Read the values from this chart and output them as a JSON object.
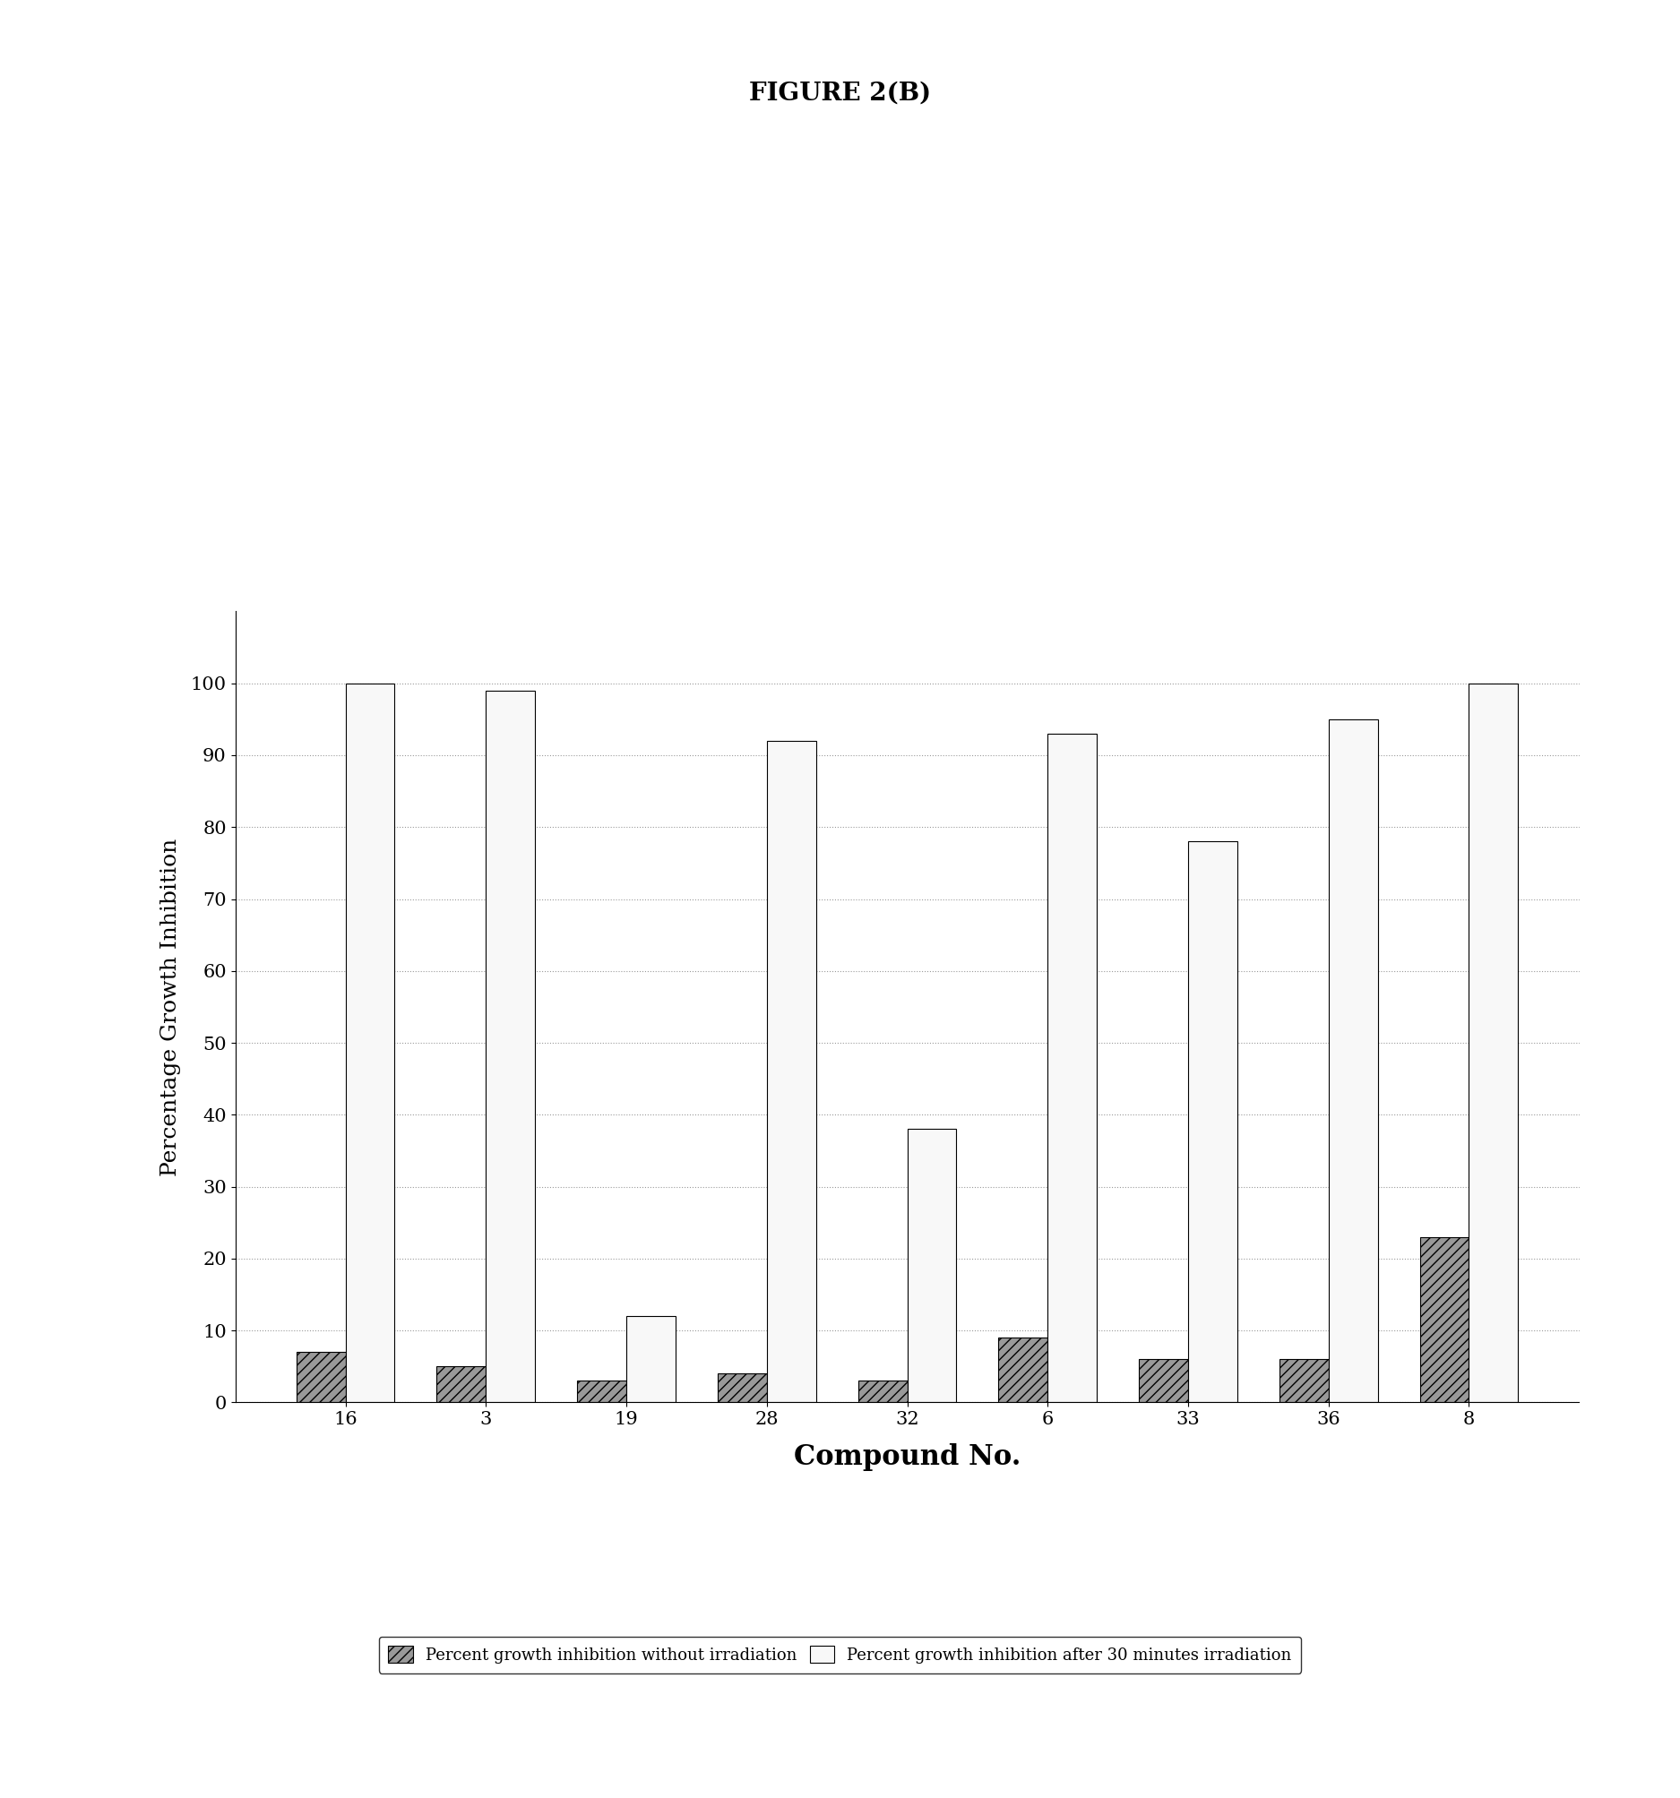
{
  "title": "FIGURE 2(B)",
  "xlabel": "Compound No.",
  "ylabel": "Percentage Growth Inhibition",
  "compounds": [
    "16",
    "3",
    "19",
    "28",
    "32",
    "6",
    "33",
    "36",
    "8"
  ],
  "dark_values": [
    7,
    5,
    3,
    4,
    3,
    9,
    6,
    6,
    23
  ],
  "white_values": [
    100,
    99,
    12,
    92,
    38,
    93,
    78,
    95,
    100
  ],
  "ylim": [
    0,
    110
  ],
  "yticks": [
    0,
    10,
    20,
    30,
    40,
    50,
    60,
    70,
    80,
    90,
    100
  ],
  "dark_color": "#999999",
  "white_color": "#f8f8f8",
  "bar_width": 0.35,
  "legend_dark": "Percent growth inhibition without irradiation",
  "legend_white": "Percent growth inhibition after 30 minutes irradiation",
  "background_color": "#ffffff",
  "title_fontsize": 20,
  "axis_label_fontsize": 18,
  "tick_fontsize": 15,
  "legend_fontsize": 13
}
